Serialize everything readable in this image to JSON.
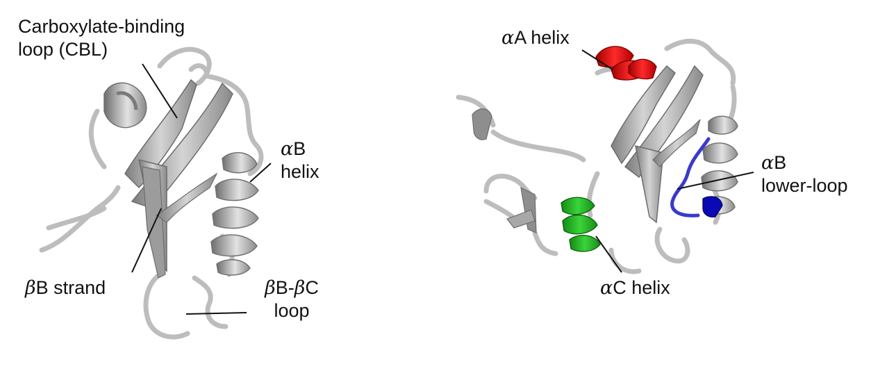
{
  "left_panel": {
    "cbl_label": {
      "line1": "Carboxylate-binding",
      "line2": "loop (CBL)"
    },
    "alphaB_label": {
      "greek": "α",
      "line1_rest": "B",
      "line2": "helix"
    },
    "betaB_label": {
      "greek": "β",
      "rest": "B strand"
    },
    "loop_label": {
      "greek1": "β",
      "mid": "B-",
      "greek2": "β",
      "end": "C",
      "line2": "loop"
    }
  },
  "right_panel": {
    "alphaA_label": {
      "greek": "α",
      "rest": "A helix"
    },
    "alphaB_lower_label": {
      "greek": "α",
      "line1_rest": "B",
      "line2": "lower-loop"
    },
    "alphaC_label": {
      "greek": "α",
      "rest": "C helix"
    }
  },
  "colors": {
    "backbone": "#b9b9b9",
    "sheet_light": "#c6c6c6",
    "sheet_dark": "#8f8f8f",
    "alphaA_helix": "#e01010",
    "alphaC_helix": "#22b022",
    "alphaB_lower_loop": "#3a3acc",
    "alphaB_lower_tip": "#0a0ab4",
    "leader_line": "#111111"
  }
}
